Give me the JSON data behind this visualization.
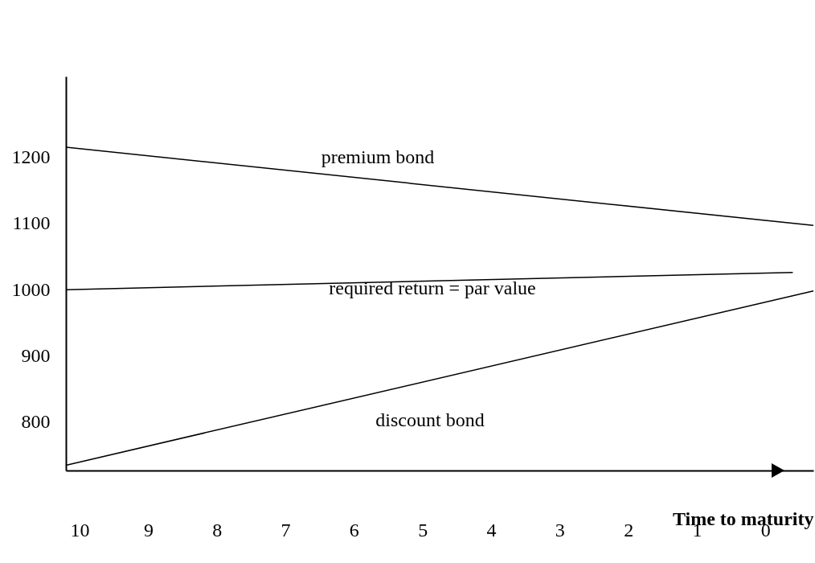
{
  "chart_data": {
    "type": "line",
    "xlabel": "Time to maturity",
    "xlim": [
      10.2,
      -0.7
    ],
    "xticks": [
      10,
      9,
      8,
      7,
      6,
      5,
      4,
      3,
      2,
      1,
      0
    ],
    "ylim": [
      727,
      1322
    ],
    "yticks": [
      800,
      900,
      1000,
      1100,
      1200
    ],
    "series": [
      {
        "color": "#000000",
        "x": [
          10.2,
          -0.7
        ],
        "values": [
          1215,
          1097
        ]
      },
      {
        "color": "#000000",
        "x": [
          10.2,
          -0.4
        ],
        "values": [
          1000,
          1026
        ]
      },
      {
        "color": "#000000",
        "x": [
          10.2,
          -0.7
        ],
        "values": [
          735,
          998
        ]
      }
    ],
    "annotations": [
      "premium bond",
      "required return = par value",
      "discount bond"
    ],
    "grid": false
  }
}
